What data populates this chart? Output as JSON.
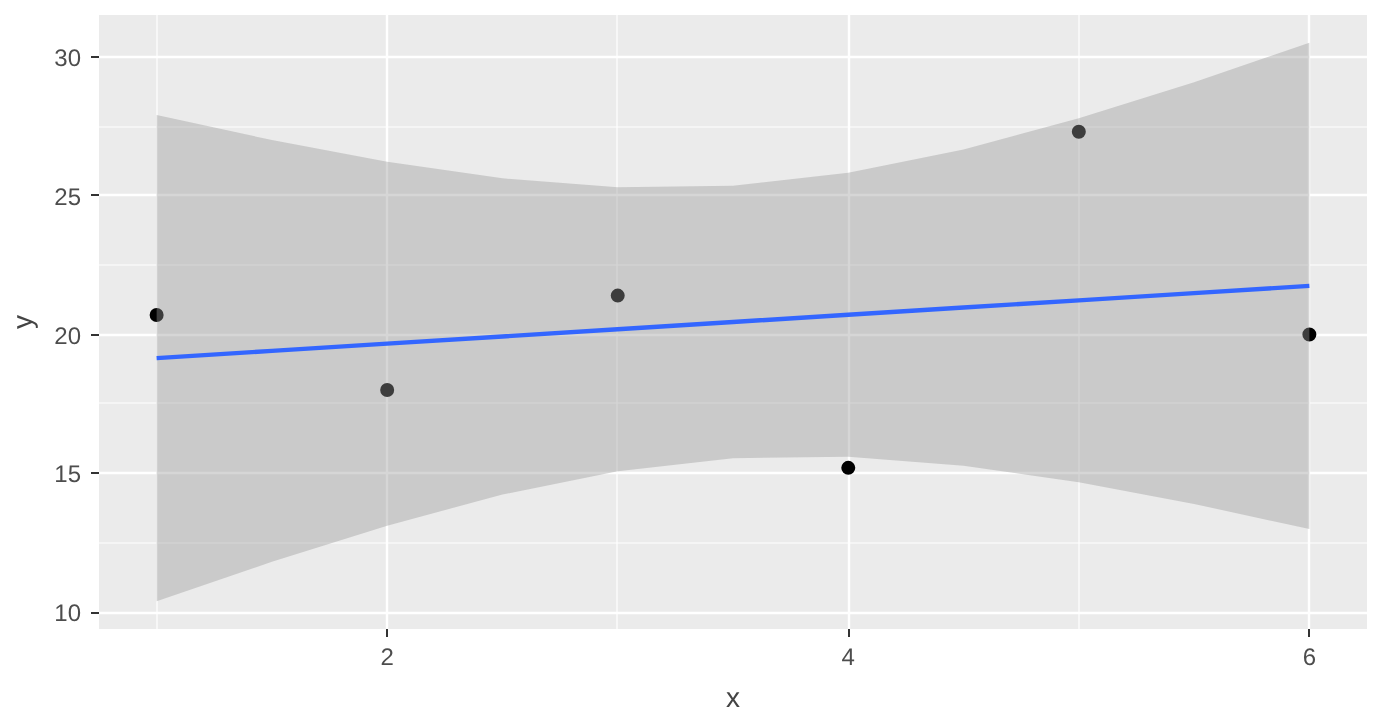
{
  "chart_data": {
    "type": "scatter",
    "xlabel": "x",
    "ylabel": "y",
    "xlim": [
      0.75,
      6.25
    ],
    "ylim": [
      9.4,
      31.5
    ],
    "xticks": [
      2,
      4,
      6
    ],
    "yticks": [
      10,
      15,
      20,
      25,
      30
    ],
    "grid": true,
    "marker": "circle",
    "series": [
      {
        "color": "#000000",
        "x": [
          1,
          2,
          3,
          4,
          5,
          6
        ],
        "values": [
          20.7,
          18.0,
          21.4,
          15.2,
          27.3,
          20.0
        ]
      },
      {
        "type": "line",
        "color": "#3366ff",
        "marker": "none",
        "line_style": "solid",
        "x": [
          1,
          1.5,
          2,
          2.5,
          3,
          3.5,
          4,
          4.5,
          5,
          5.5,
          6
        ],
        "values": [
          19.15,
          19.41,
          19.67,
          19.93,
          20.19,
          20.45,
          20.71,
          20.97,
          21.23,
          21.49,
          21.75
        ],
        "lower": [
          10.4,
          11.82,
          13.12,
          14.24,
          15.08,
          15.55,
          15.6,
          15.28,
          14.68,
          13.9,
          13.0
        ],
        "upper": [
          27.9,
          27.0,
          26.22,
          25.62,
          25.3,
          25.35,
          25.82,
          26.66,
          27.78,
          29.08,
          30.5
        ]
      }
    ]
  }
}
